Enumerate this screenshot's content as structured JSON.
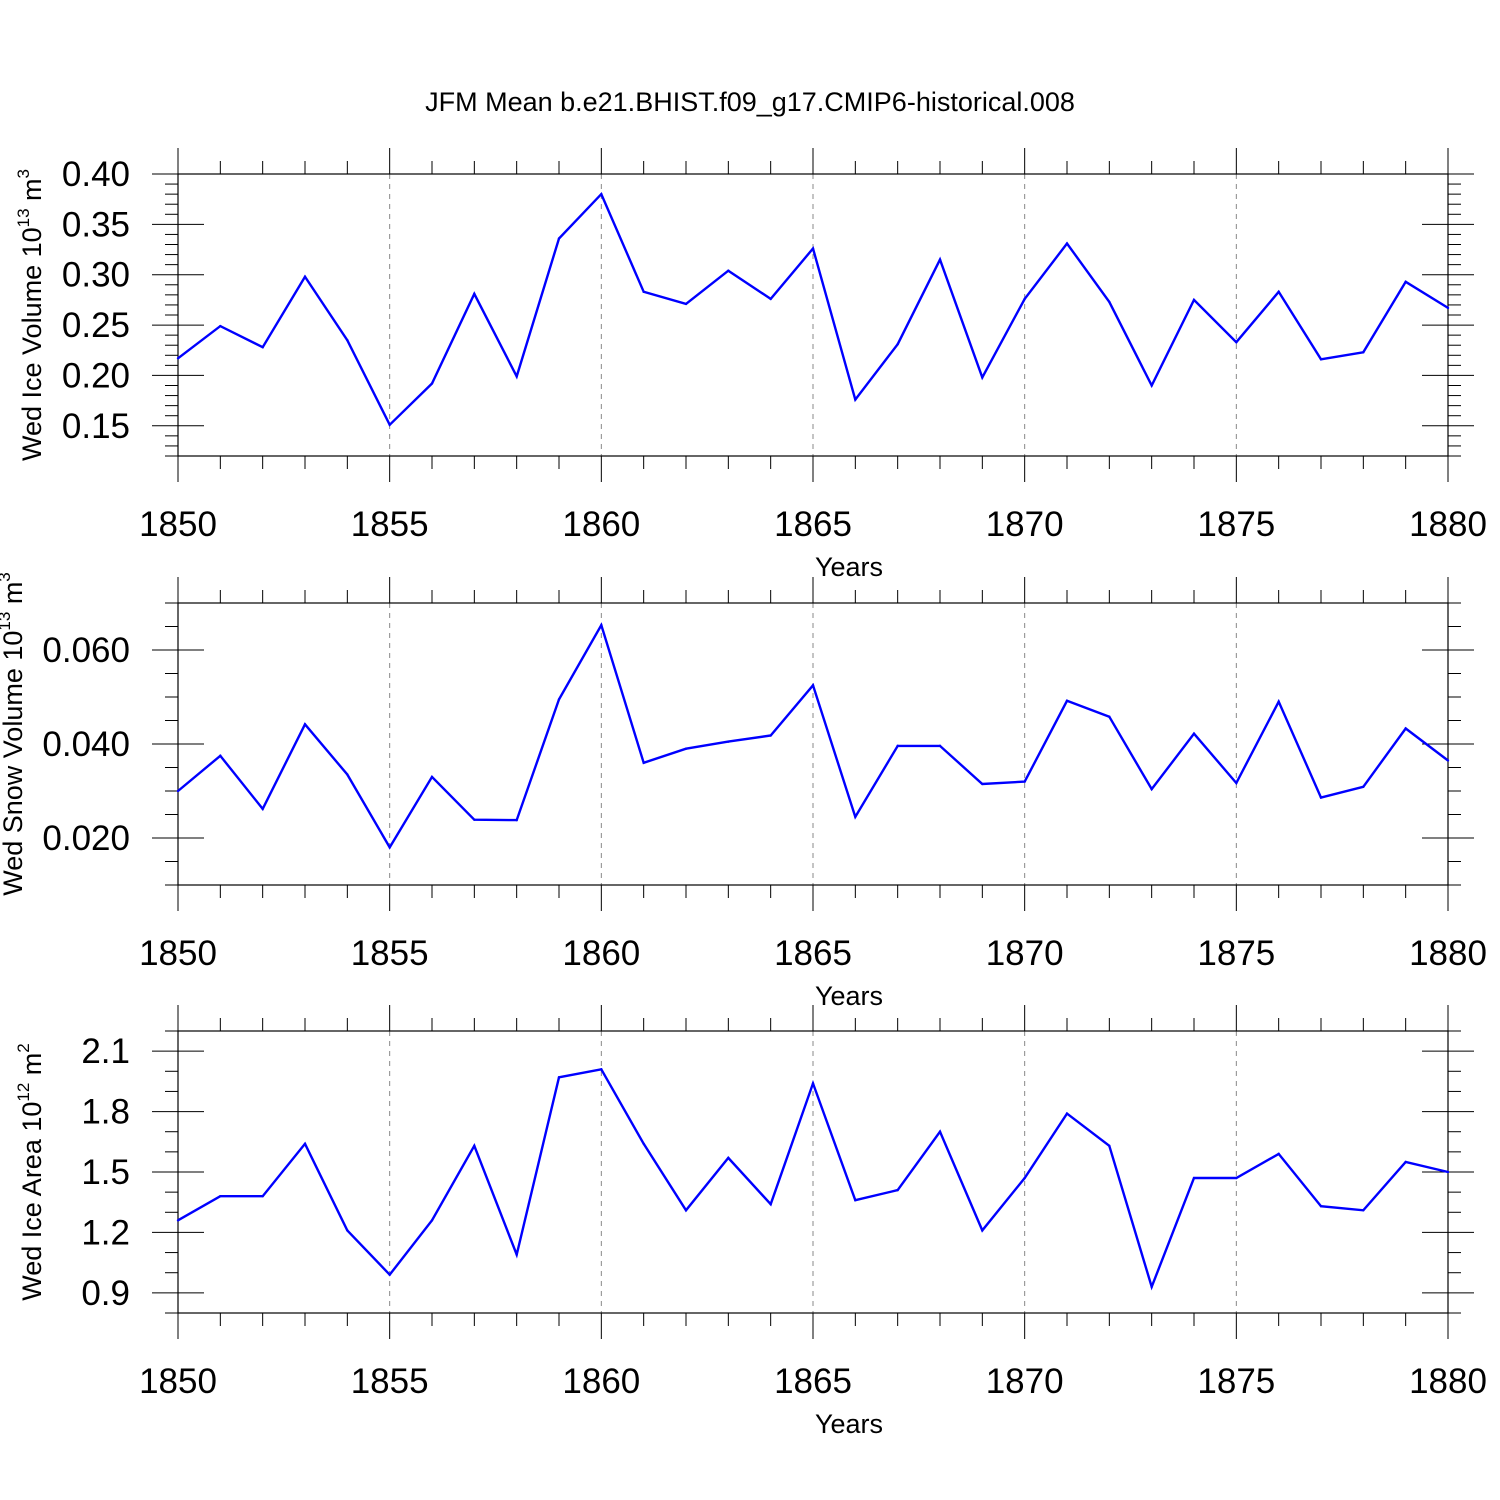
{
  "title": "JFM Mean b.e21.BHIST.f09_g17.CMIP6-historical.008",
  "colors": {
    "line": "#0000ff",
    "axis": "#000000",
    "grid": "#888888"
  },
  "chart_data": [
    {
      "type": "line",
      "title": "JFM Mean b.e21.BHIST.f09_g17.CMIP6-historical.008",
      "xlabel": "Years",
      "ylabel": "Wed Ice Volume 10",
      "ylabel_exp": "13",
      "ylabel_unit": " m",
      "ylabel_unit_exp": "3",
      "xlim": [
        1850,
        1880
      ],
      "ylim": [
        0.12,
        0.4
      ],
      "xticks": [
        1850,
        1855,
        1860,
        1865,
        1870,
        1875,
        1880
      ],
      "xtick_labels": [
        "1850",
        "1855",
        "1860",
        "1865",
        "1870",
        "1875",
        "1880"
      ],
      "yticks": [
        0.15,
        0.2,
        0.25,
        0.3,
        0.35,
        0.4
      ],
      "ytick_labels": [
        "0.15",
        "0.20",
        "0.25",
        "0.30",
        "0.35",
        "0.40"
      ],
      "yminor": 0.01,
      "x": [
        1850,
        1851,
        1852,
        1853,
        1854,
        1855,
        1856,
        1857,
        1858,
        1859,
        1860,
        1861,
        1862,
        1863,
        1864,
        1865,
        1866,
        1867,
        1868,
        1869,
        1870,
        1871,
        1872,
        1873,
        1874,
        1875,
        1876,
        1877,
        1878,
        1879,
        1880
      ],
      "series": [
        {
          "name": "Wed Ice Volume",
          "values": [
            0.217,
            0.249,
            0.228,
            0.298,
            0.235,
            0.151,
            0.192,
            0.281,
            0.199,
            0.336,
            0.38,
            0.283,
            0.271,
            0.304,
            0.276,
            0.326,
            0.176,
            0.231,
            0.315,
            0.198,
            0.276,
            0.331,
            0.273,
            0.19,
            0.275,
            0.233,
            0.283,
            0.216,
            0.223,
            0.293,
            0.267
          ]
        }
      ]
    },
    {
      "type": "line",
      "xlabel": "Years",
      "ylabel": "Wed Snow Volume 10",
      "ylabel_exp": "13",
      "ylabel_unit": " m",
      "ylabel_unit_exp": "3",
      "xlim": [
        1850,
        1880
      ],
      "ylim": [
        0.01,
        0.07
      ],
      "xticks": [
        1850,
        1855,
        1860,
        1865,
        1870,
        1875,
        1880
      ],
      "xtick_labels": [
        "1850",
        "1855",
        "1860",
        "1865",
        "1870",
        "1875",
        "1880"
      ],
      "yticks": [
        0.02,
        0.04,
        0.06
      ],
      "ytick_labels": [
        "0.020",
        "0.040",
        "0.060"
      ],
      "yminor": 0.005,
      "x": [
        1850,
        1851,
        1852,
        1853,
        1854,
        1855,
        1856,
        1857,
        1858,
        1859,
        1860,
        1861,
        1862,
        1863,
        1864,
        1865,
        1866,
        1867,
        1868,
        1869,
        1870,
        1871,
        1872,
        1873,
        1874,
        1875,
        1876,
        1877,
        1878,
        1879,
        1880
      ],
      "series": [
        {
          "name": "Wed Snow Volume",
          "values": [
            0.03,
            0.0375,
            0.0262,
            0.0442,
            0.0335,
            0.018,
            0.033,
            0.0239,
            0.0238,
            0.0495,
            0.0653,
            0.036,
            0.039,
            0.0405,
            0.0418,
            0.0525,
            0.0245,
            0.0396,
            0.0396,
            0.0315,
            0.032,
            0.0492,
            0.0458,
            0.0304,
            0.0422,
            0.0317,
            0.049,
            0.0286,
            0.0309,
            0.0433,
            0.0365
          ]
        }
      ]
    },
    {
      "type": "line",
      "xlabel": "Years",
      "ylabel": "Wed Ice Area 10",
      "ylabel_exp": "12",
      "ylabel_unit": " m",
      "ylabel_unit_exp": "2",
      "xlim": [
        1850,
        1880
      ],
      "ylim": [
        0.8,
        2.2
      ],
      "xticks": [
        1850,
        1855,
        1860,
        1865,
        1870,
        1875,
        1880
      ],
      "xtick_labels": [
        "1850",
        "1855",
        "1860",
        "1865",
        "1870",
        "1875",
        "1880"
      ],
      "yticks": [
        0.9,
        1.2,
        1.5,
        1.8,
        2.1
      ],
      "ytick_labels": [
        "0.9",
        "1.2",
        "1.5",
        "1.8",
        "2.1"
      ],
      "yminor": 0.1,
      "x": [
        1850,
        1851,
        1852,
        1853,
        1854,
        1855,
        1856,
        1857,
        1858,
        1859,
        1860,
        1861,
        1862,
        1863,
        1864,
        1865,
        1866,
        1867,
        1868,
        1869,
        1870,
        1871,
        1872,
        1873,
        1874,
        1875,
        1876,
        1877,
        1878,
        1879,
        1880
      ],
      "series": [
        {
          "name": "Wed Ice Area",
          "values": [
            1.26,
            1.38,
            1.38,
            1.64,
            1.21,
            0.99,
            1.26,
            1.63,
            1.09,
            1.97,
            2.01,
            1.64,
            1.31,
            1.57,
            1.34,
            1.94,
            1.36,
            1.41,
            1.7,
            1.21,
            1.47,
            1.79,
            1.63,
            0.93,
            1.47,
            1.47,
            1.59,
            1.33,
            1.31,
            1.55,
            1.5
          ]
        }
      ]
    }
  ]
}
